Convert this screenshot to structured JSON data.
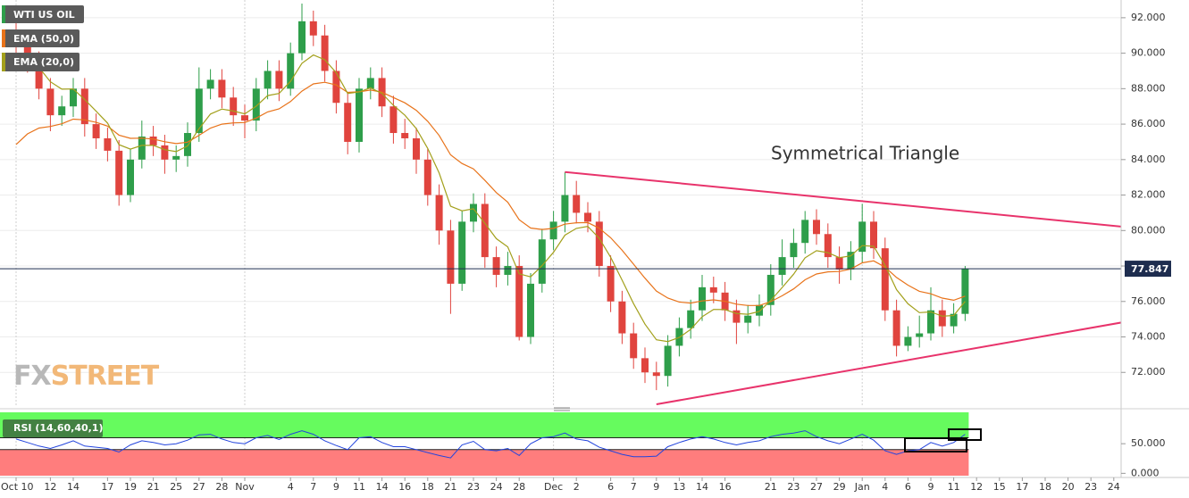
{
  "chart_data": {
    "type": "candlestick",
    "categories": [
      "Oct 10",
      null,
      null,
      "12",
      null,
      "14",
      null,
      null,
      "17",
      null,
      "19",
      null,
      "21",
      null,
      "25",
      null,
      "27",
      null,
      "28",
      null,
      "Nov",
      null,
      null,
      null,
      "4",
      null,
      "7",
      null,
      "9",
      null,
      "11",
      null,
      "14",
      null,
      "16",
      null,
      "18",
      null,
      "21",
      null,
      "23",
      null,
      "24",
      null,
      "28",
      null,
      null,
      "Dec",
      null,
      "2",
      null,
      null,
      "6",
      null,
      "7",
      null,
      "9",
      null,
      "13",
      null,
      "14",
      null,
      "16",
      null,
      null,
      null,
      "21",
      null,
      "23",
      null,
      "27",
      null,
      "29",
      null,
      "Jan",
      null,
      "4",
      null,
      "6",
      null,
      "9",
      null,
      "11",
      null,
      "12",
      null,
      "15",
      null,
      "17",
      null,
      "18",
      null,
      "20",
      null,
      "23",
      null,
      "24"
    ],
    "ylim": [
      70.1,
      93
    ],
    "yticks": [
      {
        "value": 72,
        "label": "72.000"
      },
      {
        "value": 74,
        "label": "74.000"
      },
      {
        "value": 76,
        "label": "76.000"
      },
      {
        "value": 78,
        "label": "78.000"
      },
      {
        "value": 80,
        "label": "80.000"
      },
      {
        "value": 82,
        "label": "82.000"
      },
      {
        "value": 84,
        "label": "84.000"
      },
      {
        "value": 86,
        "label": "86.000"
      },
      {
        "value": 88,
        "label": "88.000"
      },
      {
        "value": 90,
        "label": "90.000"
      },
      {
        "value": 92,
        "label": "92.000"
      }
    ],
    "grid": true,
    "series": [
      {
        "name": "WTI US OIL",
        "color": "#2e9e4a",
        "down_color": "#e0443e",
        "open": [
          91.2,
          90.5,
          89.5,
          88,
          86.5,
          87,
          88,
          86,
          85.2,
          84.5,
          82,
          84,
          85.3,
          84.8,
          84,
          84.2,
          85.5,
          88,
          88.5,
          87.5,
          86.5,
          86.2,
          88,
          89,
          88,
          90,
          91.8,
          91,
          89,
          87.2,
          85,
          88,
          88.6,
          87,
          85.5,
          85.2,
          84,
          82,
          80,
          77,
          80.5,
          81.5,
          78.5,
          77.5,
          78,
          74,
          77,
          79.5,
          80.5,
          82,
          81,
          80.5,
          78,
          76,
          74.2,
          72.8,
          72,
          71.8,
          73.5,
          74.5,
          75.5,
          76.8,
          76.5,
          75.5,
          74.8,
          75.2,
          75.8,
          77.5,
          78.5,
          79.3,
          80.6,
          79.8,
          78.5,
          77.8,
          78.8,
          80.5,
          79,
          75.5,
          73.5,
          74,
          74.2,
          75.5,
          74.6,
          75.3,
          null,
          null,
          null,
          null,
          null,
          null,
          null,
          null,
          null,
          null,
          null,
          null,
          null
        ],
        "high": [
          92.2,
          91.1,
          90.1,
          88.6,
          87.6,
          88.6,
          88.6,
          86.6,
          85.8,
          85.1,
          84.6,
          86.2,
          85.9,
          85.4,
          84.8,
          86.1,
          89.2,
          89.1,
          89.1,
          88.1,
          87.1,
          88.6,
          89.6,
          89.6,
          90.6,
          92.8,
          92.4,
          91.6,
          89.6,
          87.8,
          88.6,
          89.2,
          89.2,
          87.6,
          86.3,
          85.8,
          84.6,
          82.6,
          80.6,
          81.1,
          82.1,
          82.1,
          79.1,
          78.8,
          78.6,
          77.6,
          80.1,
          81.1,
          83.3,
          82.8,
          81.6,
          81.1,
          78.6,
          76.6,
          74.8,
          73.4,
          72.6,
          74.1,
          75.1,
          76.1,
          77.5,
          77.4,
          77.1,
          76.1,
          75.8,
          76.4,
          78.1,
          79.5,
          80.1,
          81.1,
          81.2,
          80.4,
          79.1,
          79.4,
          81.5,
          81.1,
          79.6,
          76.1,
          74.6,
          75.2,
          76.8,
          76.1,
          75.9,
          78,
          null,
          null,
          null,
          null,
          null,
          null,
          null,
          null,
          null,
          null,
          null,
          null,
          null
        ],
        "low": [
          89.8,
          88.9,
          87.4,
          85.6,
          85.9,
          86.4,
          85.3,
          84.6,
          83.9,
          81.4,
          81.6,
          83.5,
          84.2,
          83.2,
          83.3,
          83.6,
          85,
          87.4,
          86.9,
          85.9,
          85.2,
          85.6,
          87.4,
          87.3,
          87.6,
          89.6,
          90.4,
          88.4,
          86.6,
          84.3,
          84.4,
          87.4,
          86.4,
          84.9,
          84.6,
          83.2,
          81.4,
          79.2,
          75.3,
          76.6,
          79.9,
          77.9,
          76.8,
          76.9,
          73.8,
          73.6,
          76.5,
          78.9,
          79.9,
          80.4,
          79.9,
          77.4,
          75.4,
          73.6,
          72.2,
          71.4,
          71,
          71.2,
          72.9,
          73.9,
          74.9,
          75.9,
          74.9,
          73.6,
          74.2,
          74.6,
          75.2,
          76.9,
          77.9,
          78.7,
          79.2,
          77.9,
          77,
          77.2,
          78.2,
          78.4,
          74.9,
          72.9,
          73.2,
          73.4,
          73.8,
          74,
          74.2,
          74.9,
          null,
          null,
          null,
          null,
          null,
          null,
          null,
          null,
          null,
          null,
          null,
          null,
          null
        ],
        "close": [
          90.5,
          89.5,
          88,
          86.5,
          87,
          88,
          86,
          85.2,
          84.5,
          82,
          84,
          85.3,
          84.8,
          84,
          84.2,
          85.5,
          88,
          88.5,
          87.5,
          86.5,
          86.2,
          88,
          89,
          88,
          90,
          91.8,
          91,
          89,
          87.2,
          85,
          88,
          88.6,
          87,
          85.5,
          85.2,
          84,
          82,
          80,
          77,
          80.5,
          81.5,
          78.5,
          77.5,
          78,
          74,
          77,
          79.5,
          80.5,
          82,
          81,
          80.5,
          78,
          76,
          74.2,
          72.8,
          72,
          71.8,
          73.5,
          74.5,
          75.5,
          76.8,
          76.5,
          75.5,
          74.8,
          75.2,
          75.8,
          77.5,
          78.5,
          79.3,
          80.6,
          79.8,
          78.5,
          77.8,
          78.8,
          80.5,
          79,
          75.5,
          73.5,
          74,
          74.2,
          75.5,
          74.6,
          75.3,
          77.847,
          null,
          null,
          null,
          null,
          null,
          null,
          null,
          null,
          null,
          null,
          null,
          null,
          null
        ]
      },
      {
        "name": "EMA (50,0)",
        "color": "#e8731a",
        "values": [
          84.85,
          85.45,
          85.78,
          85.87,
          86.02,
          86.28,
          86.24,
          86.1,
          85.89,
          85.38,
          85.2,
          85.21,
          85.16,
          85.01,
          84.9,
          84.98,
          85.37,
          85.78,
          86.0,
          86.07,
          86.09,
          86.34,
          86.69,
          86.86,
          87.27,
          87.86,
          88.27,
          88.36,
          88.21,
          87.79,
          87.82,
          87.92,
          87.8,
          87.5,
          87.2,
          86.78,
          86.16,
          85.36,
          84.27,
          83.78,
          83.48,
          82.83,
          82.14,
          81.6,
          80.61,
          80.14,
          80.06,
          80.12,
          80.36,
          80.44,
          80.45,
          80.13,
          79.59,
          78.89,
          78.1,
          77.31,
          76.59,
          76.19,
          75.97,
          75.91,
          76.03,
          76.09,
          76.01,
          75.85,
          75.77,
          75.77,
          75.99,
          76.32,
          76.71,
          77.22,
          77.55,
          77.67,
          77.69,
          77.83,
          78.18,
          78.29,
          77.93,
          77.35,
          76.92,
          76.57,
          76.43,
          76.19,
          76.07,
          76.3,
          null,
          null,
          null,
          null,
          null,
          null,
          null,
          null,
          null,
          null,
          null,
          null,
          null
        ]
      },
      {
        "name": "EMA (20,0)",
        "color": "#a3a01c",
        "values": [
          89.8,
          89.71,
          89.2,
          88.39,
          87.97,
          87.98,
          87.39,
          86.73,
          86.06,
          84.84,
          84.59,
          84.8,
          84.8,
          84.56,
          84.45,
          84.77,
          85.74,
          86.57,
          86.85,
          86.74,
          86.58,
          87.01,
          87.61,
          87.73,
          88.41,
          89.43,
          89.9,
          89.63,
          88.9,
          87.73,
          87.81,
          88.05,
          87.73,
          87.06,
          86.5,
          85.75,
          84.63,
          83.24,
          81.37,
          81.11,
          81.23,
          80.41,
          79.54,
          79.08,
          77.56,
          77.39,
          78.02,
          78.77,
          79.74,
          80.12,
          80.23,
          79.56,
          78.49,
          77.2,
          75.88,
          74.72,
          73.84,
          73.74,
          73.97,
          74.43,
          75.14,
          75.55,
          75.54,
          75.32,
          75.28,
          75.44,
          76.06,
          76.79,
          77.54,
          78.46,
          78.86,
          78.75,
          78.47,
          78.57,
          79.15,
          79.11,
          78.03,
          76.67,
          75.87,
          75.37,
          75.41,
          75.17,
          75.21,
          76.0,
          null,
          null,
          null,
          null,
          null,
          null,
          null,
          null,
          null,
          null,
          null,
          null,
          null
        ]
      }
    ],
    "last_price": 77.847,
    "last_price_color": "#1e2d4f",
    "trendlines": [
      {
        "x": [
          48,
          97
        ],
        "y": [
          83.3,
          80.2
        ]
      },
      {
        "x": [
          56,
          97
        ],
        "y": [
          70.2,
          74.85
        ]
      }
    ],
    "trendline_color": "#e8336b",
    "pattern_label": "Symmetrical Triangle",
    "watermark": {
      "left": "FX",
      "right": "STREET"
    },
    "indicator": {
      "name": "RSI (14,60,40,1)",
      "color": "#2244dd",
      "ylim": [
        -4,
        103
      ],
      "yticks": [
        {
          "value": 0,
          "label": "0.000"
        },
        {
          "value": 50,
          "label": "50.000"
        }
      ],
      "levels": [
        60,
        40
      ],
      "zone_colors": [
        "#66fb5e",
        "#ff7d7d"
      ],
      "values": [
        58,
        52,
        46,
        42,
        48,
        55,
        46,
        44,
        42,
        36,
        48,
        55,
        52,
        48,
        50,
        56,
        65,
        66,
        58,
        52,
        50,
        60,
        64,
        57,
        66,
        72,
        66,
        55,
        47,
        40,
        60,
        62,
        52,
        45,
        45,
        40,
        35,
        30,
        26,
        48,
        54,
        40,
        38,
        42,
        30,
        50,
        60,
        62,
        68,
        58,
        55,
        44,
        38,
        32,
        28,
        28,
        29,
        45,
        52,
        58,
        62,
        58,
        52,
        48,
        52,
        55,
        62,
        66,
        68,
        72,
        62,
        55,
        50,
        58,
        66,
        56,
        38,
        32,
        38,
        40,
        52,
        46,
        52,
        66,
        null,
        null,
        null,
        null,
        null,
        null,
        null,
        null,
        null,
        null,
        null,
        null,
        null
      ]
    }
  }
}
